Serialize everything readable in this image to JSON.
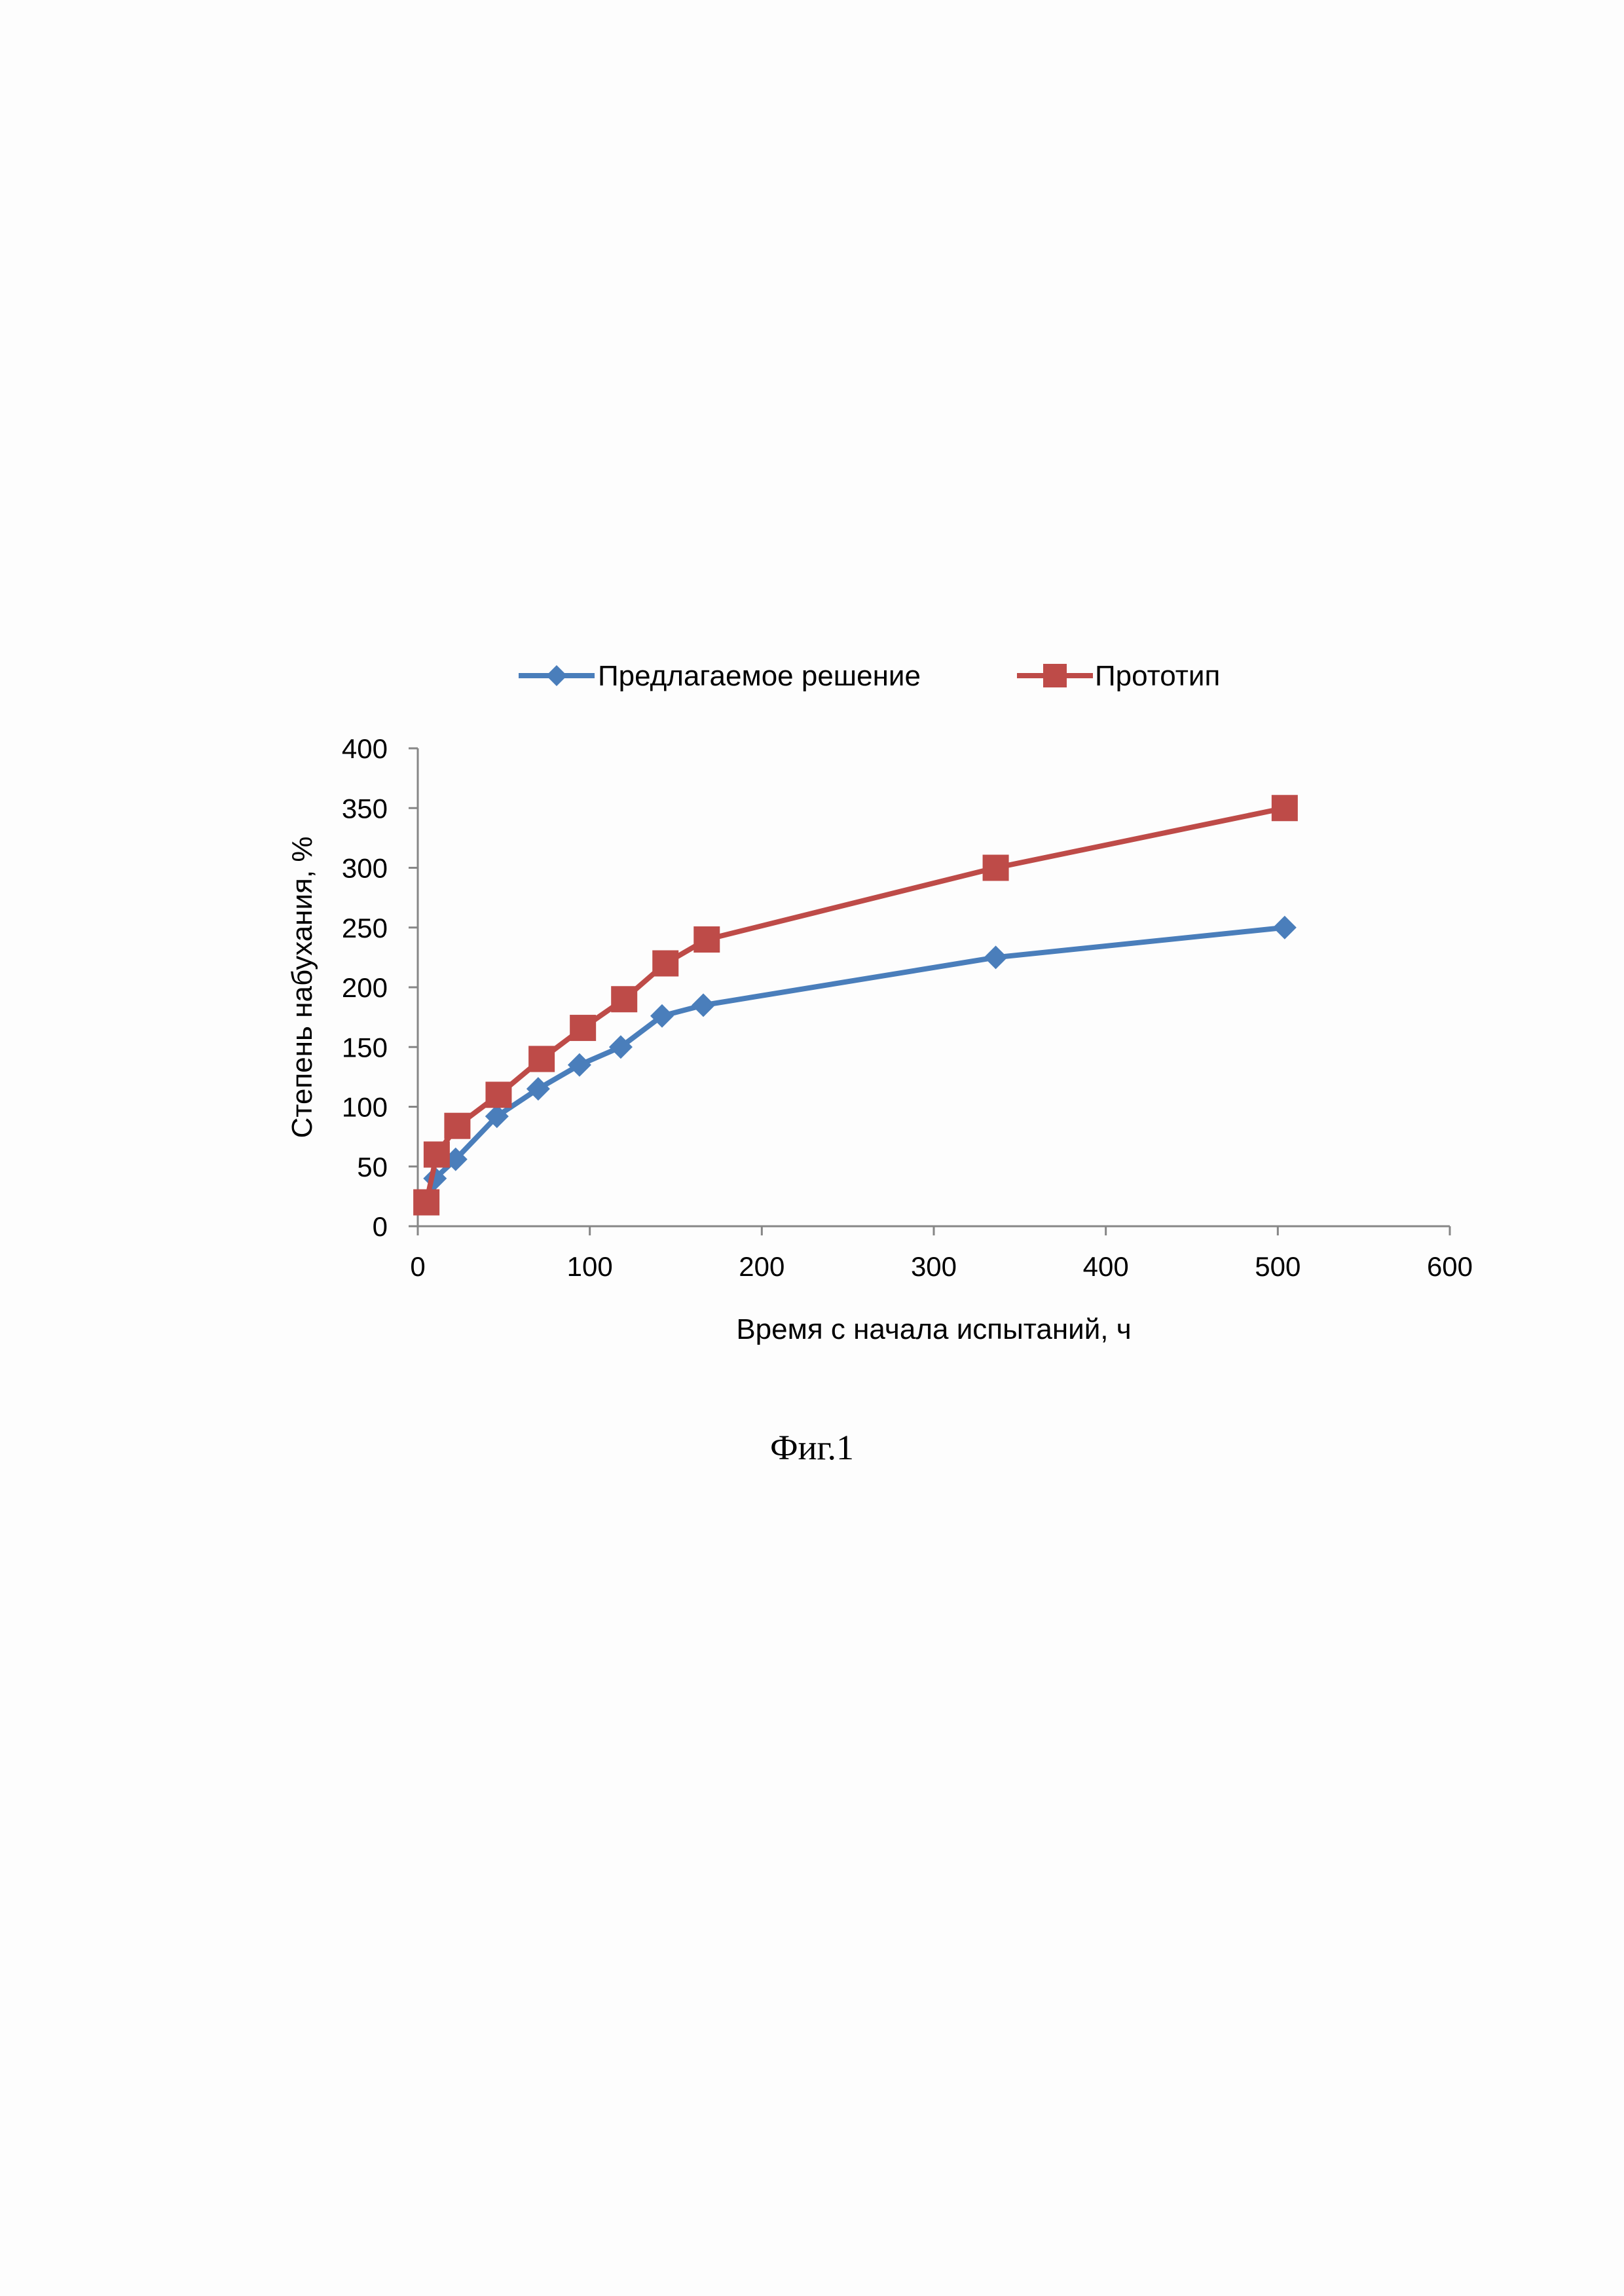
{
  "chart_data": {
    "type": "line",
    "xlabel": "Время с начала испытаний, ч",
    "ylabel": "Степень набухания, %",
    "xlim": [
      0,
      600
    ],
    "ylim": [
      0,
      400
    ],
    "x_ticks": [
      0,
      100,
      200,
      300,
      400,
      500,
      600
    ],
    "y_ticks": [
      0,
      50,
      100,
      150,
      200,
      250,
      300,
      350,
      400
    ],
    "grid": false,
    "legend_position": "top",
    "series": [
      {
        "name": "Предлагаемое решение",
        "color": "#4a7ebb",
        "marker": "diamond",
        "x": [
          5,
          10,
          22,
          46,
          70,
          94,
          118,
          142,
          166,
          336,
          504
        ],
        "y": [
          20,
          40,
          56,
          92,
          115,
          135,
          150,
          176,
          185,
          225,
          250
        ]
      },
      {
        "name": "Прототип",
        "color": "#be4b48",
        "marker": "square",
        "x": [
          5,
          11,
          23,
          47,
          72,
          96,
          120,
          144,
          168,
          336,
          504
        ],
        "y": [
          20,
          60,
          84,
          110,
          140,
          166,
          190,
          220,
          240,
          300,
          350
        ]
      }
    ]
  },
  "caption": "Фиг.1"
}
